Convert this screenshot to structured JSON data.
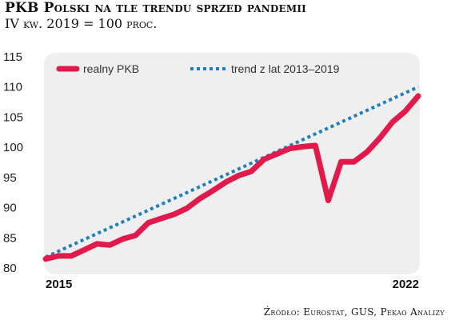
{
  "title": "PKB Polski na tle trendu sprzed pandemii",
  "subtitle": "IV kw. 2019 = 100 proc.",
  "source": "Źródło: Eurostat, GUS, Pekao Analizy",
  "colors": {
    "real": "#e2194b",
    "trend": "#1f7fb8",
    "plot_bg": "#efefef"
  },
  "chart_data": {
    "type": "line",
    "ylim": [
      80,
      115
    ],
    "yticks": [
      80,
      85,
      90,
      95,
      100,
      105,
      110,
      115
    ],
    "xlim": [
      2015.0,
      2022.25
    ],
    "xtick_labels": [
      {
        "x": 2015.0,
        "label": "2015"
      },
      {
        "x": 2022.0,
        "label": "2022"
      }
    ],
    "legend_placement": "top",
    "series": [
      {
        "name": "realny PKB",
        "style": "solid",
        "x": [
          2015.0,
          2015.25,
          2015.5,
          2015.75,
          2016.0,
          2016.25,
          2016.5,
          2016.75,
          2017.0,
          2017.25,
          2017.5,
          2017.75,
          2018.0,
          2018.25,
          2018.5,
          2018.75,
          2019.0,
          2019.25,
          2019.5,
          2019.75,
          2020.0,
          2020.25,
          2020.5,
          2020.75,
          2021.0,
          2021.25,
          2021.5,
          2021.75,
          2022.0,
          2022.25
        ],
        "values": [
          81.5,
          82.0,
          82.0,
          83.0,
          84.0,
          83.8,
          84.8,
          85.4,
          87.5,
          88.2,
          88.9,
          89.9,
          91.5,
          92.8,
          94.2,
          95.3,
          96.0,
          98.0,
          98.9,
          99.8,
          100.1,
          100.3,
          91.2,
          97.6,
          97.6,
          99.2,
          101.5,
          104.2,
          106.0,
          108.5
        ]
      },
      {
        "name": "trend z lat 2013–2019",
        "style": "dotted",
        "x": [
          2015.0,
          2022.25
        ],
        "values": [
          81.8,
          110.0
        ]
      }
    ]
  }
}
